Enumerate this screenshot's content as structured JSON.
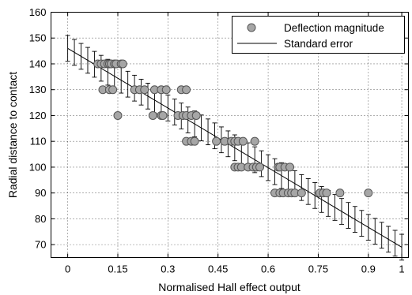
{
  "chart_data": {
    "type": "scatter",
    "xlabel": "Normalised Hall effect output",
    "ylabel": "Radial distance to contact",
    "xlim": [
      -0.05,
      1.02
    ],
    "ylim": [
      65,
      160
    ],
    "xticks": [
      0,
      0.15,
      0.3,
      0.45,
      0.6,
      0.75,
      0.9,
      1
    ],
    "xtick_labels": [
      "0",
      "0.15",
      "0.3",
      "0.45",
      "0.6",
      "0.75",
      "0.9",
      "1"
    ],
    "yticks": [
      70,
      80,
      90,
      100,
      110,
      120,
      130,
      140,
      150,
      160
    ],
    "ytick_labels": [
      "70",
      "80",
      "90",
      "100",
      "110",
      "120",
      "130",
      "140",
      "150",
      "160"
    ],
    "grid": true,
    "legend_position": "top-right",
    "legend": [
      "Deflection magnitude",
      "Standard error"
    ],
    "colors": {
      "marker_fill": "#a6a6a6",
      "marker_edge": "#555555",
      "line": "#000000"
    },
    "series": [
      {
        "name": "Deflection magnitude",
        "kind": "scatter",
        "points": [
          [
            0.09,
            140
          ],
          [
            0.1,
            140
          ],
          [
            0.11,
            140
          ],
          [
            0.12,
            140
          ],
          [
            0.125,
            140
          ],
          [
            0.13,
            140
          ],
          [
            0.14,
            140
          ],
          [
            0.145,
            140
          ],
          [
            0.16,
            140
          ],
          [
            0.165,
            140
          ],
          [
            0.105,
            130
          ],
          [
            0.125,
            130
          ],
          [
            0.135,
            130
          ],
          [
            0.2,
            130
          ],
          [
            0.215,
            130
          ],
          [
            0.23,
            130
          ],
          [
            0.26,
            130
          ],
          [
            0.28,
            130
          ],
          [
            0.295,
            130
          ],
          [
            0.34,
            130
          ],
          [
            0.355,
            130
          ],
          [
            0.15,
            120
          ],
          [
            0.255,
            120
          ],
          [
            0.28,
            120
          ],
          [
            0.285,
            120
          ],
          [
            0.33,
            120
          ],
          [
            0.345,
            120
          ],
          [
            0.355,
            120
          ],
          [
            0.37,
            120
          ],
          [
            0.385,
            120
          ],
          [
            0.355,
            110
          ],
          [
            0.37,
            110
          ],
          [
            0.38,
            110
          ],
          [
            0.445,
            110
          ],
          [
            0.47,
            110
          ],
          [
            0.49,
            110
          ],
          [
            0.5,
            110
          ],
          [
            0.51,
            110
          ],
          [
            0.525,
            110
          ],
          [
            0.56,
            110
          ],
          [
            0.5,
            100
          ],
          [
            0.51,
            100
          ],
          [
            0.52,
            100
          ],
          [
            0.54,
            100
          ],
          [
            0.555,
            100
          ],
          [
            0.565,
            100
          ],
          [
            0.575,
            100
          ],
          [
            0.63,
            100
          ],
          [
            0.635,
            100
          ],
          [
            0.65,
            100
          ],
          [
            0.665,
            100
          ],
          [
            0.62,
            90
          ],
          [
            0.635,
            90
          ],
          [
            0.645,
            90
          ],
          [
            0.66,
            90
          ],
          [
            0.67,
            90
          ],
          [
            0.68,
            90
          ],
          [
            0.7,
            90
          ],
          [
            0.755,
            90
          ],
          [
            0.765,
            90
          ],
          [
            0.775,
            90
          ],
          [
            0.815,
            90
          ],
          [
            0.9,
            90
          ]
        ]
      },
      {
        "name": "Standard error",
        "kind": "line_with_errorbars",
        "line": [
          [
            0,
            146
          ],
          [
            1,
            69
          ]
        ],
        "errorbar_halfwidth": 5
      }
    ]
  }
}
